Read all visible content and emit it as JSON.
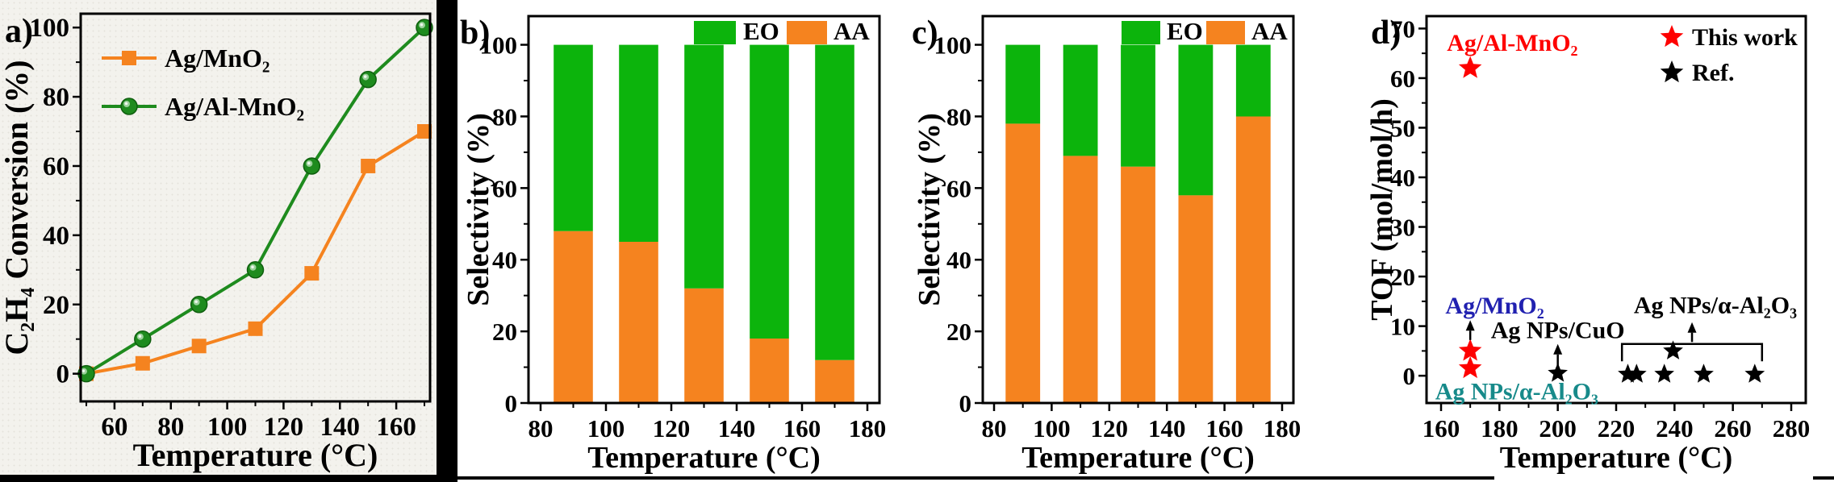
{
  "figure": {
    "description": "Four-panel catalysis figure: ethylene conversion, selectivity at two conditions, and TOF comparison",
    "colors": {
      "orange": "#F5831F",
      "green_line": "#1E8B1E",
      "green_bar": "#0CB40C",
      "red": "#FE0000",
      "blue_label": "#2121B0",
      "teal_label": "#178A8A",
      "black": "#000000"
    }
  },
  "chart_data": [
    {
      "panel_label": "a)",
      "type": "line",
      "xlabel": "Temperature (°C)",
      "ylabel": "C₂H₄ Conversion (%)",
      "xlim": [
        48,
        172
      ],
      "ylim": [
        -8,
        104
      ],
      "x_ticks": [
        60,
        80,
        100,
        120,
        140,
        160
      ],
      "y_ticks": [
        0,
        20,
        40,
        60,
        80,
        100
      ],
      "x": [
        50,
        70,
        90,
        110,
        130,
        150,
        170
      ],
      "series": [
        {
          "name": "Ag/MnO₂",
          "color": "#F5831F",
          "marker": "square",
          "values": [
            0,
            3,
            8,
            13,
            29,
            60,
            70
          ]
        },
        {
          "name": "Ag/Al-MnO₂",
          "color": "#1E8B1E",
          "marker": "sphere",
          "values": [
            0,
            10,
            20,
            30,
            60,
            85,
            100
          ]
        }
      ],
      "legend_position": "top-left",
      "grid": false
    },
    {
      "panel_label": "b)",
      "type": "bar",
      "stacked": true,
      "xlabel": "Temperature (°C)",
      "ylabel": "Selectivity (%)",
      "categories": [
        90,
        110,
        130,
        150,
        170
      ],
      "bar_width_units": 12,
      "xlim": [
        80,
        180
      ],
      "ylim": [
        0,
        108
      ],
      "x_ticks": [
        80,
        100,
        120,
        140,
        160,
        180
      ],
      "y_ticks": [
        0,
        20,
        40,
        60,
        80,
        100
      ],
      "series": [
        {
          "name": "AA",
          "color": "#F5831F",
          "values": [
            48,
            45,
            32,
            18,
            12
          ]
        },
        {
          "name": "EO",
          "color": "#0CB40C",
          "values": [
            52,
            55,
            68,
            82,
            88
          ]
        }
      ],
      "legend_order": [
        "EO",
        "AA"
      ],
      "legend_position": "top-right",
      "grid": false
    },
    {
      "panel_label": "c)",
      "type": "bar",
      "stacked": true,
      "xlabel": "Temperature (°C)",
      "ylabel": "Selectivity (%)",
      "categories": [
        90,
        110,
        130,
        150,
        170
      ],
      "bar_width_units": 12,
      "xlim": [
        80,
        180
      ],
      "ylim": [
        0,
        108
      ],
      "x_ticks": [
        80,
        100,
        120,
        140,
        160,
        180
      ],
      "y_ticks": [
        0,
        20,
        40,
        60,
        80,
        100
      ],
      "series": [
        {
          "name": "AA",
          "color": "#F5831F",
          "values": [
            78,
            69,
            66,
            58,
            80
          ]
        },
        {
          "name": "EO",
          "color": "#0CB40C",
          "values": [
            22,
            31,
            34,
            42,
            20
          ]
        }
      ],
      "legend_order": [
        "EO",
        "AA"
      ],
      "legend_position": "top-right",
      "grid": false
    },
    {
      "panel_label": "d)",
      "type": "scatter",
      "xlabel": "Temperature (°C)",
      "ylabel": "TOF (mol/mol/h)",
      "xlim": [
        155,
        285
      ],
      "ylim": [
        -5.5,
        72.5
      ],
      "x_ticks": [
        160,
        180,
        200,
        220,
        240,
        260,
        280
      ],
      "y_ticks": [
        0,
        10,
        20,
        30,
        40,
        50,
        60,
        70
      ],
      "series": [
        {
          "name": "This work",
          "color": "#FE0000",
          "marker": "star",
          "points": [
            [
              170,
              62
            ],
            [
              170,
              5
            ],
            [
              170,
              1.5
            ]
          ]
        },
        {
          "name": "Ref.",
          "color": "#000000",
          "marker": "star",
          "points": [
            [
              200,
              0.5
            ],
            [
              224,
              0.3
            ],
            [
              227,
              0.3
            ],
            [
              236.5,
              0.3
            ],
            [
              250,
              0.3
            ],
            [
              267.5,
              0.3
            ],
            [
              239.5,
              5
            ]
          ]
        }
      ],
      "legend_position": "top-right",
      "annotations": [
        {
          "text": "Ag/Al-MnO₂",
          "color": "#FE0000",
          "x": 162,
          "y": 65.5,
          "anchor": "start"
        },
        {
          "text": "Ag/MnO₂",
          "color": "#2121B0",
          "x": 161.5,
          "y": 12.5,
          "anchor": "start",
          "arrow": [
            170,
            7.2,
            170,
            11.2
          ]
        },
        {
          "text": "Ag NPs/α-Al₂O₃",
          "color": "#178A8A",
          "x": 158,
          "y": -4.8,
          "anchor": "start"
        },
        {
          "text": "Ag NPs/CuO",
          "color": "#000000",
          "x": 200,
          "y": 7.6,
          "anchor": "middle",
          "arrow": [
            200,
            1.9,
            200,
            6.4
          ]
        },
        {
          "text": "Ag NPs/α-Al₂O₃",
          "color": "#000000",
          "x": 254,
          "y": 12.6,
          "anchor": "middle",
          "arrow": [
            246,
            6.8,
            246,
            10.8
          ],
          "bracket": [
            222,
            270,
            6.4,
            2.9
          ]
        }
      ],
      "grid": false
    }
  ]
}
